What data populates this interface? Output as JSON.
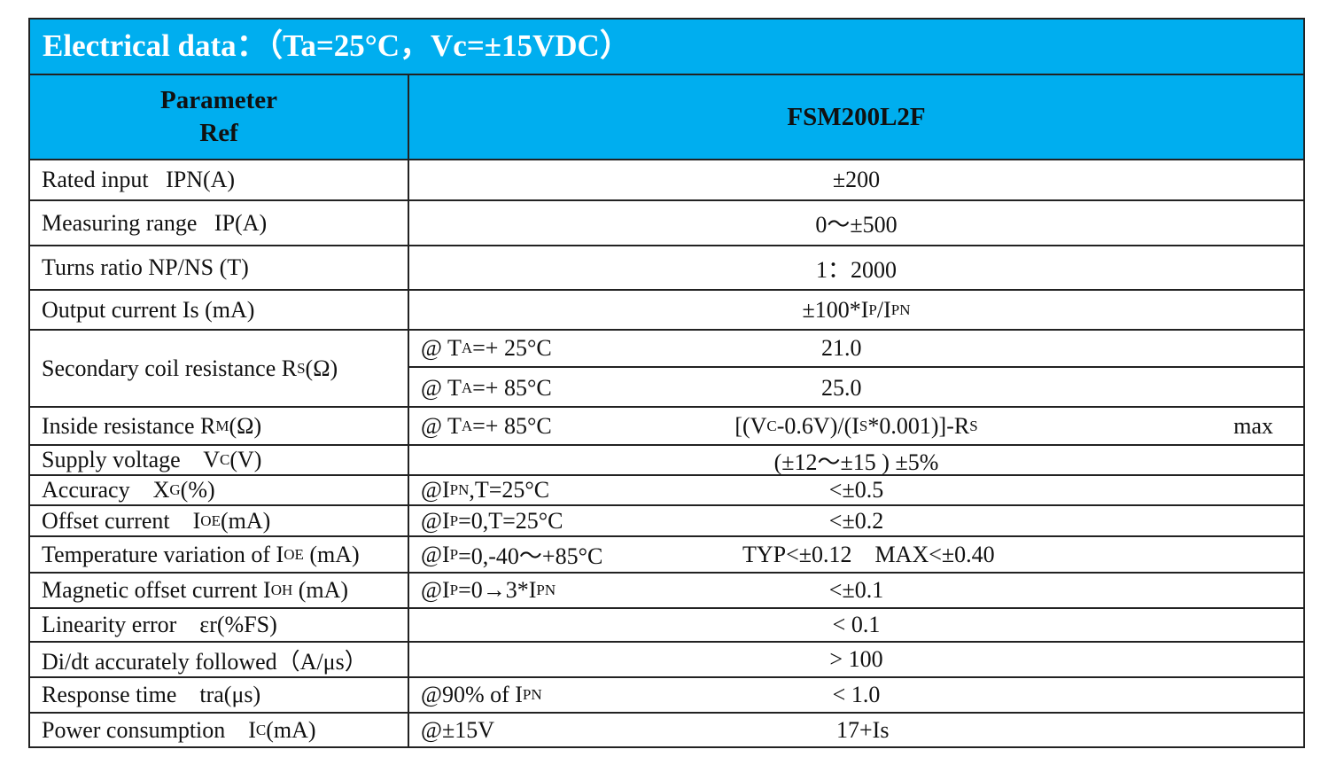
{
  "title": "Electrical data：（Ta=25°C，Vc=±15VDC）",
  "header": {
    "param_line1": "Parameter",
    "param_line2": "Ref",
    "model": "FSM200L2F"
  },
  "rows": {
    "rated_input": {
      "param": "Rated input   IPN(A)",
      "value": "±200"
    },
    "measuring_range": {
      "param": "Measuring range   IP(A)",
      "value": "0～±500"
    },
    "turns_ratio": {
      "param": "Turns ratio NP/NS (T)",
      "value": "1：2000"
    },
    "output_current": {
      "param": "Output current Is (mA)",
      "value_a": "±100*I",
      "value_sub1": "P",
      "value_b": "/I",
      "value_sub2": "PN"
    },
    "secondary_coil": {
      "param_a": "Secondary coil resistance R",
      "param_sub": "S",
      "param_b": "(Ω)",
      "cond1_a": "@ T",
      "cond1_sub": "A",
      "cond1_b": "=+ 25°C",
      "value1": "21.0",
      "cond2_a": "@ T",
      "cond2_sub": "A",
      "cond2_b": "=+ 85°C",
      "value2": "25.0"
    },
    "inside_resistance": {
      "param_a": "Inside resistance R",
      "param_sub": "M",
      "param_b": "(Ω)",
      "cond_a": "@ T",
      "cond_sub": "A",
      "cond_b": "=+ 85°C",
      "value_a": "[(V",
      "value_sub1": "C",
      "value_b": "-0.6V)/(I",
      "value_sub2": "S",
      "value_c": "*0.001)]-R",
      "value_sub3": "S",
      "limit": "max"
    },
    "supply_voltage": {
      "param_a": "Supply voltage    V",
      "param_sub": "C",
      "param_b": "(V)",
      "value": "(±12～±15 ) ±5%"
    },
    "accuracy": {
      "param_a": "Accuracy    X",
      "param_sub": "G",
      "param_b": "(%)",
      "cond_a": "@I",
      "cond_sub": "PN",
      "cond_b": ",T=25°C",
      "value": "<±0.5"
    },
    "offset_current": {
      "param_a": "Offset current    I",
      "param_sub": "OE",
      "param_b": "(mA)",
      "cond_a": "@I",
      "cond_sub": "P",
      "cond_b": "=0,T=25°C",
      "value": "<±0.2"
    },
    "temp_variation": {
      "param_a": "Temperature variation of I",
      "param_sub": "OE",
      "param_b": " (mA)",
      "cond_a": "@I",
      "cond_sub": "P",
      "cond_b": "=0,-40～+85°C",
      "value": "TYP<±0.12    MAX<±0.40"
    },
    "magnetic_offset": {
      "param_a": "Magnetic offset current I",
      "param_sub": "OH",
      "param_b": " (mA)",
      "cond_a": "@I",
      "cond_sub": "P",
      "cond_b": "=0→3*I",
      "cond_sub2": "PN",
      "value": "<±0.1"
    },
    "linearity": {
      "param": "Linearity error    εr(%FS)",
      "value": "< 0.1"
    },
    "didt": {
      "param": "Di/dt accurately followed（A/μs）",
      "value": "> 100"
    },
    "response_time": {
      "param": "Response time    tra(μs)",
      "cond_a": "@90% of I",
      "cond_sub": "PN",
      "value": "< 1.0"
    },
    "power_consumption": {
      "param_a": "Power consumption    I",
      "param_sub": "C",
      "param_b": "(mA)",
      "cond": "@±15V",
      "value": "17+Is"
    }
  },
  "colors": {
    "header_bg": "#00aeef",
    "title_text": "#ffffff",
    "border": "#222222"
  }
}
